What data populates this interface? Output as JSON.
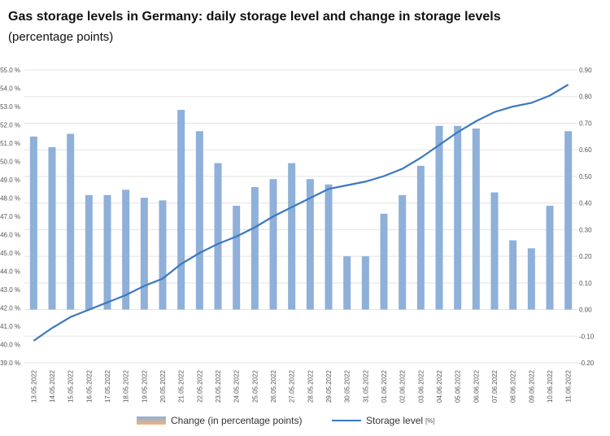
{
  "title": "Gas storage levels in Germany: daily storage level and change in storage levels",
  "subtitle": "(percentage points)",
  "chart_data": {
    "type": "bar+line",
    "categories": [
      "13.05.2022",
      "14.05.2022",
      "15.05.2022",
      "16.05.2022",
      "17.05.2022",
      "18.05.2022",
      "19.05.2022",
      "20.05.2022",
      "21.05.2022",
      "22.05.2022",
      "23.05.2022",
      "24.05.2022",
      "25.05.2022",
      "26.05.2022",
      "27.05.2022",
      "28.05.2022",
      "29.05.2022",
      "30.05.2022",
      "31.05.2022",
      "01.06.2022",
      "02.06.2022",
      "03.06.2022",
      "04.06.2022",
      "05.06.2022",
      "06.06.2022",
      "07.06.2022",
      "08.06.2022",
      "09.06.2022",
      "10.06.2022",
      "11.06.2022"
    ],
    "series": [
      {
        "name": "Change (in percentage points)",
        "type": "bar",
        "axis": "right",
        "color": "#8eb0d9",
        "values": [
          0.65,
          0.61,
          0.66,
          0.43,
          0.43,
          0.45,
          0.42,
          0.41,
          0.75,
          0.67,
          0.55,
          0.39,
          0.46,
          0.49,
          0.55,
          0.49,
          0.47,
          0.2,
          0.2,
          0.36,
          0.43,
          0.54,
          0.69,
          0.69,
          0.68,
          0.44,
          0.26,
          0.23,
          0.39,
          0.67
        ]
      },
      {
        "name": "Storage level",
        "unit": "[%]",
        "type": "line",
        "axis": "left",
        "color": "#3c78c0",
        "values": [
          40.2,
          40.9,
          41.5,
          41.9,
          42.3,
          42.7,
          43.2,
          43.6,
          44.4,
          45.0,
          45.5,
          45.9,
          46.4,
          47.0,
          47.5,
          48.0,
          48.5,
          48.7,
          48.9,
          49.2,
          49.6,
          50.2,
          50.9,
          51.6,
          52.2,
          52.7,
          53.0,
          53.2,
          53.6,
          54.2
        ]
      }
    ],
    "left_axis": {
      "ylim": [
        39,
        55
      ],
      "ticks": [
        "55.0 %",
        "54.0 %",
        "53.0 %",
        "52.0 %",
        "51.0 %",
        "50.0 %",
        "49.0 %",
        "48.0 %",
        "47.0 %",
        "46.0 %",
        "45.0 %",
        "44.0 %",
        "43.0 %",
        "42.0 %",
        "41.0 %",
        "40.0 %",
        "39.0 %"
      ]
    },
    "right_axis": {
      "ylim": [
        -0.2,
        0.9
      ],
      "ticks": [
        "0.90",
        "0.80",
        "0.70",
        "0.60",
        "0.50",
        "0.40",
        "0.30",
        "0.20",
        "0.10",
        "0.00",
        "-0.10",
        "-0.20"
      ]
    },
    "grid": true,
    "legend": "bottom"
  }
}
